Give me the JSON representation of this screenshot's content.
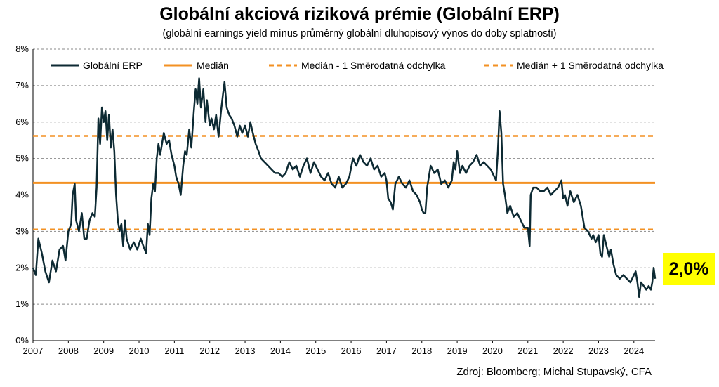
{
  "chart_data": {
    "type": "line",
    "title": "Globální akciová riziková prémie (Globální ERP)",
    "subtitle": "(globální earnings yield mínus průměrný globální dluhopisový výnos do doby splatnosti)",
    "ylim": [
      0,
      8
    ],
    "xlim": [
      2007,
      2024.6
    ],
    "y_ticks": [
      "0%",
      "1%",
      "2%",
      "3%",
      "4%",
      "5%",
      "6%",
      "7%",
      "8%"
    ],
    "x_ticks": [
      "2007",
      "2008",
      "2009",
      "2010",
      "2011",
      "2012",
      "2013",
      "2014",
      "2015",
      "2016",
      "2017",
      "2018",
      "2019",
      "2020",
      "2021",
      "2022",
      "2023",
      "2024"
    ],
    "grid": "horizontal dashed",
    "legend_position": "top",
    "series": [
      {
        "name": "Globální ERP",
        "color": "#0d2a33",
        "style": "solid",
        "points": [
          [
            2007.0,
            2.0
          ],
          [
            2007.08,
            1.8
          ],
          [
            2007.15,
            2.8
          ],
          [
            2007.25,
            2.4
          ],
          [
            2007.35,
            1.9
          ],
          [
            2007.45,
            1.6
          ],
          [
            2007.55,
            2.2
          ],
          [
            2007.65,
            1.9
          ],
          [
            2007.75,
            2.5
          ],
          [
            2007.85,
            2.6
          ],
          [
            2007.92,
            2.2
          ],
          [
            2008.0,
            3.0
          ],
          [
            2008.08,
            3.2
          ],
          [
            2008.12,
            4.0
          ],
          [
            2008.18,
            4.3
          ],
          [
            2008.22,
            3.3
          ],
          [
            2008.3,
            3.0
          ],
          [
            2008.38,
            3.5
          ],
          [
            2008.45,
            2.8
          ],
          [
            2008.52,
            2.8
          ],
          [
            2008.6,
            3.3
          ],
          [
            2008.68,
            3.5
          ],
          [
            2008.75,
            3.4
          ],
          [
            2008.8,
            4.2
          ],
          [
            2008.85,
            6.1
          ],
          [
            2008.9,
            5.4
          ],
          [
            2008.95,
            6.4
          ],
          [
            2009.0,
            6.0
          ],
          [
            2009.05,
            6.3
          ],
          [
            2009.1,
            5.5
          ],
          [
            2009.15,
            6.2
          ],
          [
            2009.2,
            5.3
          ],
          [
            2009.25,
            5.8
          ],
          [
            2009.3,
            5.2
          ],
          [
            2009.35,
            4.0
          ],
          [
            2009.4,
            3.3
          ],
          [
            2009.45,
            3.0
          ],
          [
            2009.5,
            3.2
          ],
          [
            2009.55,
            2.6
          ],
          [
            2009.6,
            3.3
          ],
          [
            2009.65,
            2.8
          ],
          [
            2009.75,
            2.5
          ],
          [
            2009.85,
            2.7
          ],
          [
            2009.95,
            2.5
          ],
          [
            2010.05,
            2.8
          ],
          [
            2010.12,
            2.6
          ],
          [
            2010.2,
            2.4
          ],
          [
            2010.25,
            3.2
          ],
          [
            2010.3,
            2.9
          ],
          [
            2010.35,
            3.9
          ],
          [
            2010.4,
            4.3
          ],
          [
            2010.45,
            4.1
          ],
          [
            2010.5,
            5.0
          ],
          [
            2010.55,
            5.4
          ],
          [
            2010.6,
            5.1
          ],
          [
            2010.7,
            5.7
          ],
          [
            2010.78,
            5.4
          ],
          [
            2010.85,
            5.5
          ],
          [
            2010.92,
            5.1
          ],
          [
            2011.0,
            4.8
          ],
          [
            2011.05,
            4.5
          ],
          [
            2011.12,
            4.3
          ],
          [
            2011.18,
            4.0
          ],
          [
            2011.25,
            4.8
          ],
          [
            2011.3,
            5.2
          ],
          [
            2011.35,
            5.1
          ],
          [
            2011.42,
            5.8
          ],
          [
            2011.48,
            5.3
          ],
          [
            2011.55,
            6.3
          ],
          [
            2011.6,
            6.9
          ],
          [
            2011.65,
            6.5
          ],
          [
            2011.7,
            7.2
          ],
          [
            2011.75,
            6.4
          ],
          [
            2011.82,
            6.9
          ],
          [
            2011.88,
            6.0
          ],
          [
            2011.92,
            6.6
          ],
          [
            2012.0,
            5.9
          ],
          [
            2012.05,
            6.1
          ],
          [
            2012.12,
            5.8
          ],
          [
            2012.18,
            6.2
          ],
          [
            2012.25,
            5.6
          ],
          [
            2012.32,
            6.3
          ],
          [
            2012.38,
            6.8
          ],
          [
            2012.42,
            7.1
          ],
          [
            2012.48,
            6.4
          ],
          [
            2012.55,
            6.2
          ],
          [
            2012.62,
            6.1
          ],
          [
            2012.7,
            5.9
          ],
          [
            2012.78,
            5.6
          ],
          [
            2012.85,
            5.9
          ],
          [
            2012.92,
            5.7
          ],
          [
            2013.0,
            5.9
          ],
          [
            2013.08,
            5.6
          ],
          [
            2013.15,
            6.0
          ],
          [
            2013.22,
            5.7
          ],
          [
            2013.3,
            5.4
          ],
          [
            2013.38,
            5.2
          ],
          [
            2013.45,
            5.0
          ],
          [
            2013.55,
            4.9
          ],
          [
            2013.65,
            4.8
          ],
          [
            2013.75,
            4.7
          ],
          [
            2013.85,
            4.6
          ],
          [
            2013.95,
            4.6
          ],
          [
            2014.05,
            4.5
          ],
          [
            2014.15,
            4.6
          ],
          [
            2014.25,
            4.9
          ],
          [
            2014.35,
            4.7
          ],
          [
            2014.45,
            4.8
          ],
          [
            2014.55,
            4.5
          ],
          [
            2014.65,
            4.8
          ],
          [
            2014.75,
            5.0
          ],
          [
            2014.85,
            4.6
          ],
          [
            2014.95,
            4.9
          ],
          [
            2015.05,
            4.7
          ],
          [
            2015.15,
            4.5
          ],
          [
            2015.25,
            4.4
          ],
          [
            2015.35,
            4.6
          ],
          [
            2015.45,
            4.3
          ],
          [
            2015.55,
            4.2
          ],
          [
            2015.65,
            4.5
          ],
          [
            2015.75,
            4.2
          ],
          [
            2015.85,
            4.3
          ],
          [
            2015.95,
            4.5
          ],
          [
            2016.05,
            5.0
          ],
          [
            2016.15,
            4.8
          ],
          [
            2016.25,
            5.1
          ],
          [
            2016.35,
            4.9
          ],
          [
            2016.45,
            4.8
          ],
          [
            2016.55,
            5.0
          ],
          [
            2016.65,
            4.7
          ],
          [
            2016.75,
            4.8
          ],
          [
            2016.85,
            4.5
          ],
          [
            2016.95,
            4.6
          ],
          [
            2017.0,
            4.4
          ],
          [
            2017.05,
            3.9
          ],
          [
            2017.12,
            3.8
          ],
          [
            2017.18,
            3.6
          ],
          [
            2017.25,
            4.3
          ],
          [
            2017.35,
            4.5
          ],
          [
            2017.45,
            4.3
          ],
          [
            2017.55,
            4.2
          ],
          [
            2017.65,
            4.4
          ],
          [
            2017.75,
            4.1
          ],
          [
            2017.85,
            4.0
          ],
          [
            2017.95,
            3.8
          ],
          [
            2018.0,
            3.6
          ],
          [
            2018.05,
            3.5
          ],
          [
            2018.1,
            3.5
          ],
          [
            2018.15,
            4.2
          ],
          [
            2018.25,
            4.8
          ],
          [
            2018.35,
            4.6
          ],
          [
            2018.45,
            4.7
          ],
          [
            2018.55,
            4.3
          ],
          [
            2018.65,
            4.4
          ],
          [
            2018.75,
            4.2
          ],
          [
            2018.85,
            4.4
          ],
          [
            2018.9,
            4.9
          ],
          [
            2018.95,
            4.7
          ],
          [
            2019.0,
            5.2
          ],
          [
            2019.08,
            4.6
          ],
          [
            2019.15,
            4.8
          ],
          [
            2019.25,
            4.6
          ],
          [
            2019.35,
            4.8
          ],
          [
            2019.45,
            4.9
          ],
          [
            2019.55,
            5.1
          ],
          [
            2019.65,
            4.8
          ],
          [
            2019.75,
            4.9
          ],
          [
            2019.85,
            4.8
          ],
          [
            2019.95,
            4.7
          ],
          [
            2020.0,
            4.6
          ],
          [
            2020.05,
            4.5
          ],
          [
            2020.1,
            4.4
          ],
          [
            2020.15,
            5.2
          ],
          [
            2020.2,
            6.3
          ],
          [
            2020.25,
            5.7
          ],
          [
            2020.3,
            4.3
          ],
          [
            2020.35,
            4.0
          ],
          [
            2020.42,
            3.5
          ],
          [
            2020.5,
            3.7
          ],
          [
            2020.6,
            3.4
          ],
          [
            2020.7,
            3.5
          ],
          [
            2020.8,
            3.3
          ],
          [
            2020.9,
            3.1
          ],
          [
            2021.0,
            3.1
          ],
          [
            2021.05,
            2.6
          ],
          [
            2021.08,
            4.0
          ],
          [
            2021.15,
            4.2
          ],
          [
            2021.25,
            4.2
          ],
          [
            2021.35,
            4.1
          ],
          [
            2021.45,
            4.1
          ],
          [
            2021.55,
            4.2
          ],
          [
            2021.65,
            4.0
          ],
          [
            2021.75,
            4.1
          ],
          [
            2021.85,
            4.2
          ],
          [
            2021.95,
            4.4
          ],
          [
            2022.0,
            3.9
          ],
          [
            2022.05,
            4.0
          ],
          [
            2022.12,
            3.7
          ],
          [
            2022.2,
            4.1
          ],
          [
            2022.3,
            3.8
          ],
          [
            2022.4,
            4.0
          ],
          [
            2022.5,
            3.7
          ],
          [
            2022.55,
            3.4
          ],
          [
            2022.6,
            3.1
          ],
          [
            2022.7,
            3.0
          ],
          [
            2022.8,
            2.8
          ],
          [
            2022.85,
            2.9
          ],
          [
            2022.92,
            2.7
          ],
          [
            2023.0,
            2.9
          ],
          [
            2023.05,
            2.4
          ],
          [
            2023.1,
            2.3
          ],
          [
            2023.15,
            2.9
          ],
          [
            2023.2,
            2.7
          ],
          [
            2023.25,
            2.5
          ],
          [
            2023.3,
            2.3
          ],
          [
            2023.35,
            2.5
          ],
          [
            2023.42,
            2.1
          ],
          [
            2023.5,
            1.8
          ],
          [
            2023.6,
            1.7
          ],
          [
            2023.7,
            1.8
          ],
          [
            2023.8,
            1.7
          ],
          [
            2023.9,
            1.6
          ],
          [
            2024.0,
            1.8
          ],
          [
            2024.05,
            1.9
          ],
          [
            2024.1,
            1.6
          ],
          [
            2024.15,
            1.2
          ],
          [
            2024.2,
            1.6
          ],
          [
            2024.28,
            1.5
          ],
          [
            2024.35,
            1.4
          ],
          [
            2024.42,
            1.5
          ],
          [
            2024.48,
            1.4
          ],
          [
            2024.52,
            1.6
          ],
          [
            2024.56,
            2.0
          ],
          [
            2024.6,
            1.7
          ]
        ]
      },
      {
        "name": "Medián",
        "color": "#f39123",
        "style": "solid",
        "value": 4.33
      },
      {
        "name": "Medián - 1 Směrodatná odchylka",
        "color": "#f39123",
        "style": "dashed",
        "value": 3.05
      },
      {
        "name": "Medián + 1 Směrodatná odchylka",
        "color": "#f39123",
        "style": "dashed",
        "value": 5.62
      }
    ],
    "annotations": [
      {
        "text": "2,0%",
        "background": "#ffff00"
      }
    ]
  },
  "source": "Zdroj: Bloomberg; Michal Stupavský, CFA"
}
